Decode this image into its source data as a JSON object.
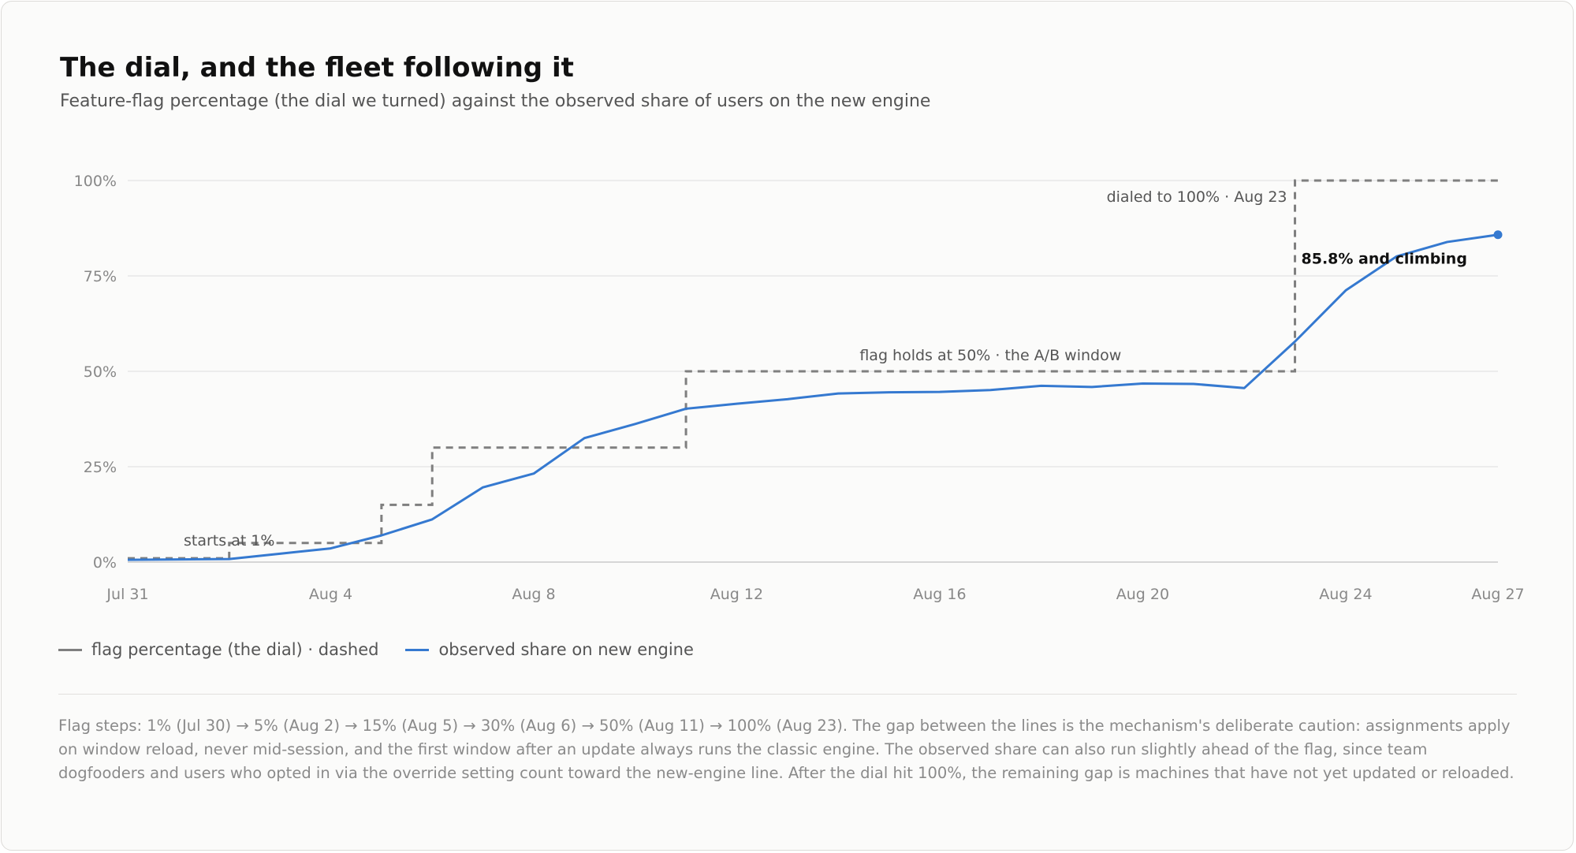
{
  "title": "The dial, and the fleet following it",
  "subtitle": "Feature-flag percentage (the dial we turned) against the observed share of users on the new engine",
  "legend": {
    "flag_label": "flag percentage (the dial) · dashed",
    "observed_label": "observed share on new engine"
  },
  "footnote": "Flag steps: 1% (Jul 30) → 5% (Aug 2) → 15% (Aug 5) → 30% (Aug 6) → 50% (Aug 11) → 100% (Aug 23). The gap between the lines is the mechanism's deliberate caution: assignments apply on window reload, never mid-session, and the first window after an update always runs the classic engine. The observed share can also run slightly ahead of the flag, since team dogfooders and users who opted in via the override setting count toward the new-engine line. After the dial hit 100%, the remaining gap is machines that have not yet updated or reloaded.",
  "colors": {
    "flag": "#7f7f7f",
    "observed": "#3579d0",
    "grid": "#e3e3e3",
    "axis_text": "#888888"
  },
  "chart_data": {
    "type": "line",
    "x_ticks": [
      "Jul 31",
      "Aug 4",
      "Aug 8",
      "Aug 12",
      "Aug 16",
      "Aug 20",
      "Aug 24",
      "Aug 27"
    ],
    "y_ticks": [
      "0%",
      "25%",
      "50%",
      "75%",
      "100%"
    ],
    "ylim": [
      0,
      100
    ],
    "xlim": [
      "Jul 31",
      "Aug 27"
    ],
    "grid": true,
    "series": [
      {
        "name": "flag percentage (the dial)",
        "style": "dashed-step",
        "points": [
          {
            "x": "Jul 31",
            "y": 1
          },
          {
            "x": "Aug 2",
            "y": 5
          },
          {
            "x": "Aug 5",
            "y": 15
          },
          {
            "x": "Aug 6",
            "y": 30
          },
          {
            "x": "Aug 11",
            "y": 50
          },
          {
            "x": "Aug 23",
            "y": 100
          },
          {
            "x": "Aug 27",
            "y": 100
          }
        ]
      },
      {
        "name": "observed share on new engine",
        "style": "solid",
        "points": [
          {
            "x": "Jul 31",
            "y": 0.6
          },
          {
            "x": "Aug 1",
            "y": 0.7
          },
          {
            "x": "Aug 2",
            "y": 0.8
          },
          {
            "x": "Aug 3",
            "y": 2.2
          },
          {
            "x": "Aug 4",
            "y": 3.6
          },
          {
            "x": "Aug 5",
            "y": 7.0
          },
          {
            "x": "Aug 6",
            "y": 11.2
          },
          {
            "x": "Aug 7",
            "y": 19.6
          },
          {
            "x": "Aug 8",
            "y": 23.2
          },
          {
            "x": "Aug 9",
            "y": 32.5
          },
          {
            "x": "Aug 10",
            "y": 36.2
          },
          {
            "x": "Aug 11",
            "y": 40.2
          },
          {
            "x": "Aug 12",
            "y": 41.5
          },
          {
            "x": "Aug 13",
            "y": 42.7
          },
          {
            "x": "Aug 14",
            "y": 44.2
          },
          {
            "x": "Aug 15",
            "y": 44.5
          },
          {
            "x": "Aug 16",
            "y": 44.6
          },
          {
            "x": "Aug 17",
            "y": 45.1
          },
          {
            "x": "Aug 18",
            "y": 46.2
          },
          {
            "x": "Aug 19",
            "y": 45.9
          },
          {
            "x": "Aug 20",
            "y": 46.8
          },
          {
            "x": "Aug 21",
            "y": 46.7
          },
          {
            "x": "Aug 22",
            "y": 45.6
          },
          {
            "x": "Aug 23",
            "y": 57.8
          },
          {
            "x": "Aug 24",
            "y": 71.2
          },
          {
            "x": "Aug 25",
            "y": 80.1
          },
          {
            "x": "Aug 26",
            "y": 83.9
          },
          {
            "x": "Aug 27",
            "y": 85.8
          }
        ]
      }
    ],
    "annotations": [
      {
        "text": "starts at 1%",
        "x": "Aug 2",
        "y": 1,
        "anchor": "middle",
        "bold": false
      },
      {
        "text": "flag holds at 50% · the A/B window",
        "x": "Aug 17",
        "y": 50,
        "anchor": "middle",
        "bold": false
      },
      {
        "text": "dialed to 100% · Aug 23",
        "x": "Aug 23",
        "y": 100,
        "anchor": "end",
        "bold": false
      },
      {
        "text": "85.8% and climbing",
        "x": "Aug 23",
        "y": 85.8,
        "anchor": "start",
        "bold": true
      }
    ]
  }
}
